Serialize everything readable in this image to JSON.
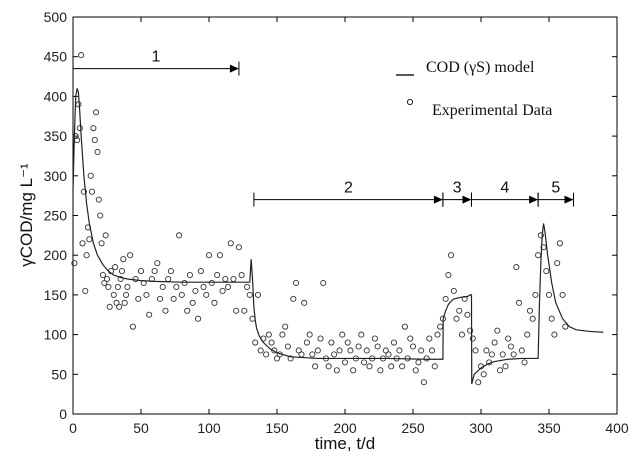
{
  "chart_data": {
    "type": "scatter",
    "xlabel": "time, t/d",
    "ylabel": "γCOD/mg L⁻¹",
    "xlim": [
      0,
      400
    ],
    "ylim": [
      0,
      500
    ],
    "xticks": [
      0,
      50,
      100,
      150,
      200,
      250,
      300,
      350,
      400
    ],
    "yticks": [
      0,
      50,
      100,
      150,
      200,
      250,
      300,
      350,
      400,
      450,
      500
    ],
    "grid": false,
    "legend_position": "top-right",
    "legend": [
      {
        "label": "COD (γS) model",
        "marker": "line"
      },
      {
        "label": "Experimental Data",
        "marker": "circle"
      }
    ],
    "phases": [
      {
        "label": "1",
        "x_start": 0,
        "x_end": 122,
        "y": 435
      },
      {
        "label": "2",
        "x_start": 133,
        "x_end": 272,
        "y": 270
      },
      {
        "label": "3",
        "x_start": 272,
        "x_end": 293,
        "y": 270
      },
      {
        "label": "4",
        "x_start": 293,
        "x_end": 342,
        "y": 270
      },
      {
        "label": "5",
        "x_start": 342,
        "x_end": 368,
        "y": 270
      }
    ],
    "series": [
      {
        "name": "COD (γS) model",
        "kind": "line",
        "x": [
          0,
          1,
          2,
          3,
          4,
          5,
          6,
          8,
          10,
          12,
          15,
          18,
          22,
          26,
          30,
          35,
          40,
          50,
          60,
          80,
          100,
          120,
          130,
          131,
          132,
          133,
          134,
          135,
          137,
          140,
          145,
          150,
          160,
          180,
          200,
          230,
          260,
          272,
          272.2,
          274,
          276,
          278,
          280,
          285,
          290,
          292,
          293,
          293.2,
          295,
          300,
          305,
          310,
          320,
          330,
          341,
          342,
          343,
          344,
          345,
          346,
          347,
          349,
          352,
          355,
          360,
          365,
          370,
          380,
          390
        ],
        "y": [
          280,
          350,
          400,
          410,
          405,
          380,
          350,
          300,
          265,
          240,
          215,
          200,
          188,
          180,
          175,
          172,
          170,
          168,
          167,
          166,
          166,
          166,
          166,
          195,
          170,
          135,
          118,
          108,
          98,
          90,
          82,
          77,
          72,
          70,
          70,
          70,
          69,
          69,
          120,
          130,
          138,
          142,
          145,
          147,
          148,
          150,
          150,
          38,
          50,
          58,
          63,
          66,
          69,
          70,
          70,
          70,
          140,
          190,
          225,
          240,
          230,
          200,
          165,
          140,
          120,
          110,
          106,
          104,
          103
        ]
      },
      {
        "name": "Experimental Data",
        "kind": "scatter",
        "x": [
          1,
          2,
          3,
          4,
          5,
          6,
          7,
          8,
          9,
          10,
          11,
          12,
          13,
          14,
          15,
          16,
          17,
          18,
          19,
          20,
          21,
          22,
          23,
          24,
          25,
          26,
          27,
          28,
          30,
          31,
          32,
          33,
          34,
          35,
          36,
          37,
          38,
          39,
          40,
          42,
          44,
          46,
          48,
          50,
          52,
          54,
          56,
          58,
          60,
          62,
          64,
          66,
          68,
          70,
          72,
          74,
          76,
          78,
          80,
          82,
          84,
          86,
          88,
          90,
          92,
          94,
          96,
          98,
          100,
          102,
          104,
          106,
          108,
          110,
          112,
          114,
          116,
          118,
          120,
          122,
          124,
          126,
          128,
          130,
          132,
          134,
          136,
          138,
          140,
          142,
          144,
          146,
          148,
          150,
          152,
          154,
          156,
          158,
          160,
          162,
          164,
          166,
          168,
          170,
          172,
          174,
          176,
          178,
          180,
          182,
          184,
          186,
          188,
          190,
          192,
          194,
          196,
          198,
          200,
          202,
          204,
          206,
          208,
          210,
          212,
          214,
          216,
          218,
          220,
          222,
          224,
          226,
          228,
          230,
          232,
          234,
          236,
          238,
          240,
          242,
          244,
          246,
          248,
          250,
          252,
          254,
          256,
          258,
          260,
          262,
          264,
          266,
          268,
          270,
          272,
          274,
          276,
          278,
          280,
          282,
          284,
          286,
          288,
          290,
          292,
          294,
          296,
          298,
          300,
          302,
          304,
          306,
          308,
          310,
          312,
          314,
          316,
          318,
          320,
          322,
          324,
          326,
          328,
          330,
          332,
          334,
          336,
          338,
          340,
          342,
          344,
          346,
          348,
          350,
          352,
          354,
          356,
          358,
          360,
          362
        ],
        "y": [
          190,
          350,
          345,
          390,
          360,
          452,
          215,
          280,
          155,
          200,
          235,
          220,
          300,
          280,
          360,
          345,
          380,
          330,
          270,
          250,
          215,
          175,
          165,
          225,
          170,
          160,
          135,
          180,
          150,
          185,
          140,
          160,
          135,
          170,
          180,
          195,
          140,
          150,
          160,
          200,
          110,
          170,
          145,
          180,
          165,
          150,
          125,
          170,
          180,
          190,
          145,
          160,
          130,
          170,
          180,
          145,
          160,
          225,
          150,
          165,
          130,
          175,
          140,
          155,
          120,
          180,
          160,
          150,
          200,
          165,
          140,
          175,
          200,
          155,
          170,
          160,
          215,
          170,
          130,
          210,
          175,
          130,
          160,
          150,
          120,
          90,
          150,
          80,
          95,
          75,
          100,
          90,
          80,
          70,
          75,
          100,
          110,
          85,
          70,
          145,
          165,
          80,
          75,
          140,
          90,
          100,
          75,
          60,
          80,
          95,
          165,
          70,
          60,
          90,
          75,
          55,
          80,
          100,
          65,
          90,
          80,
          55,
          70,
          85,
          100,
          65,
          80,
          60,
          70,
          95,
          85,
          55,
          70,
          80,
          75,
          60,
          90,
          70,
          80,
          60,
          110,
          70,
          95,
          85,
          55,
          65,
          80,
          40,
          70,
          95,
          80,
          60,
          100,
          110,
          120,
          145,
          175,
          200,
          155,
          120,
          130,
          100,
          145,
          125,
          105,
          95,
          80,
          40,
          60,
          50,
          80,
          65,
          75,
          90,
          105,
          55,
          75,
          60,
          95,
          85,
          75,
          185,
          140,
          80,
          65,
          100,
          130,
          120,
          150,
          200,
          225,
          210,
          180,
          150,
          120,
          100,
          190,
          215,
          150,
          110
        ]
      }
    ]
  }
}
